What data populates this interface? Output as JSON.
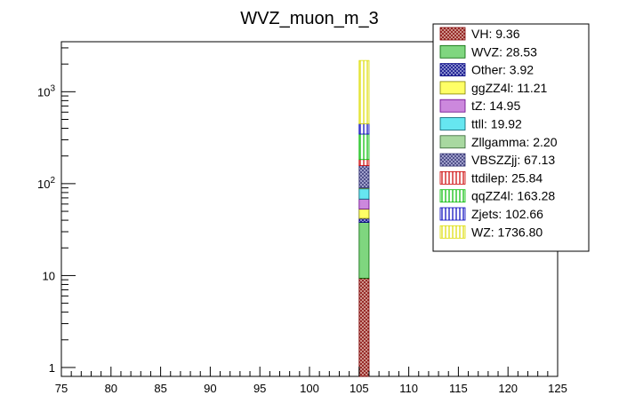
{
  "chart_data": {
    "type": "bar",
    "stacked": true,
    "title": "WVZ_muon_m_3",
    "xlabel": "",
    "ylabel": "",
    "xlim": [
      75,
      125
    ],
    "ylim": [
      0.8,
      3500
    ],
    "yscale": "log",
    "grid": false,
    "legend_position": "top-right",
    "x_ticks": [
      "75",
      "80",
      "85",
      "90",
      "95",
      "100",
      "105",
      "110",
      "115",
      "120",
      "125"
    ],
    "y_ticks": [
      {
        "base": "1",
        "exp": ""
      },
      {
        "base": "10",
        "exp": ""
      },
      {
        "base": "10",
        "exp": "2"
      },
      {
        "base": "10",
        "exp": "3"
      }
    ],
    "bin": [
      105,
      106
    ],
    "series": [
      {
        "name": "VH",
        "label": "VH: 9.36",
        "value": 9.36,
        "fill": "#d9a8a0",
        "pattern": "cross",
        "line": "#800000"
      },
      {
        "name": "WVZ",
        "label": "WVZ: 28.53",
        "value": 28.53,
        "fill": "#7fd67f",
        "pattern": "solid",
        "line": "#006400"
      },
      {
        "name": "Other",
        "label": "Other: 3.92",
        "value": 3.92,
        "fill": "#9aa0d8",
        "pattern": "cross",
        "line": "#000080"
      },
      {
        "name": "ggZZ4l",
        "label": "ggZZ4l: 11.21",
        "value": 11.21,
        "fill": "#ffff66",
        "pattern": "solid",
        "line": "#808000"
      },
      {
        "name": "tZ",
        "label": "tZ: 14.95",
        "value": 14.95,
        "fill": "#cc88dd",
        "pattern": "solid",
        "line": "#660088"
      },
      {
        "name": "ttll",
        "label": "ttll: 19.92",
        "value": 19.92,
        "fill": "#66e6f0",
        "pattern": "solid",
        "line": "#006070"
      },
      {
        "name": "Zllgamma",
        "label": "Zllgamma: 2.20",
        "value": 2.2,
        "fill": "#a8d8a0",
        "pattern": "solid",
        "line": "#306030"
      },
      {
        "name": "VBSZZjj",
        "label": "VBSZZjj: 67.13",
        "value": 67.13,
        "fill": "#b0b0d8",
        "pattern": "cross",
        "line": "#303070"
      },
      {
        "name": "ttdilep",
        "label": "ttdilep: 25.84",
        "value": 25.84,
        "fill": "#ffffff",
        "pattern": "vlines",
        "line": "#cc0000"
      },
      {
        "name": "qqZZ4l",
        "label": "qqZZ4l: 163.28",
        "value": 163.28,
        "fill": "#ffffff",
        "pattern": "vlines",
        "line": "#00bb00"
      },
      {
        "name": "Zjets",
        "label": "Zjets: 102.66",
        "value": 102.66,
        "fill": "#ffffff",
        "pattern": "vlines",
        "line": "#0000bb"
      },
      {
        "name": "WZ",
        "label": "WZ: 1736.80",
        "value": 1736.8,
        "fill": "#ffffff",
        "pattern": "vlines",
        "line": "#dddd00"
      }
    ]
  }
}
